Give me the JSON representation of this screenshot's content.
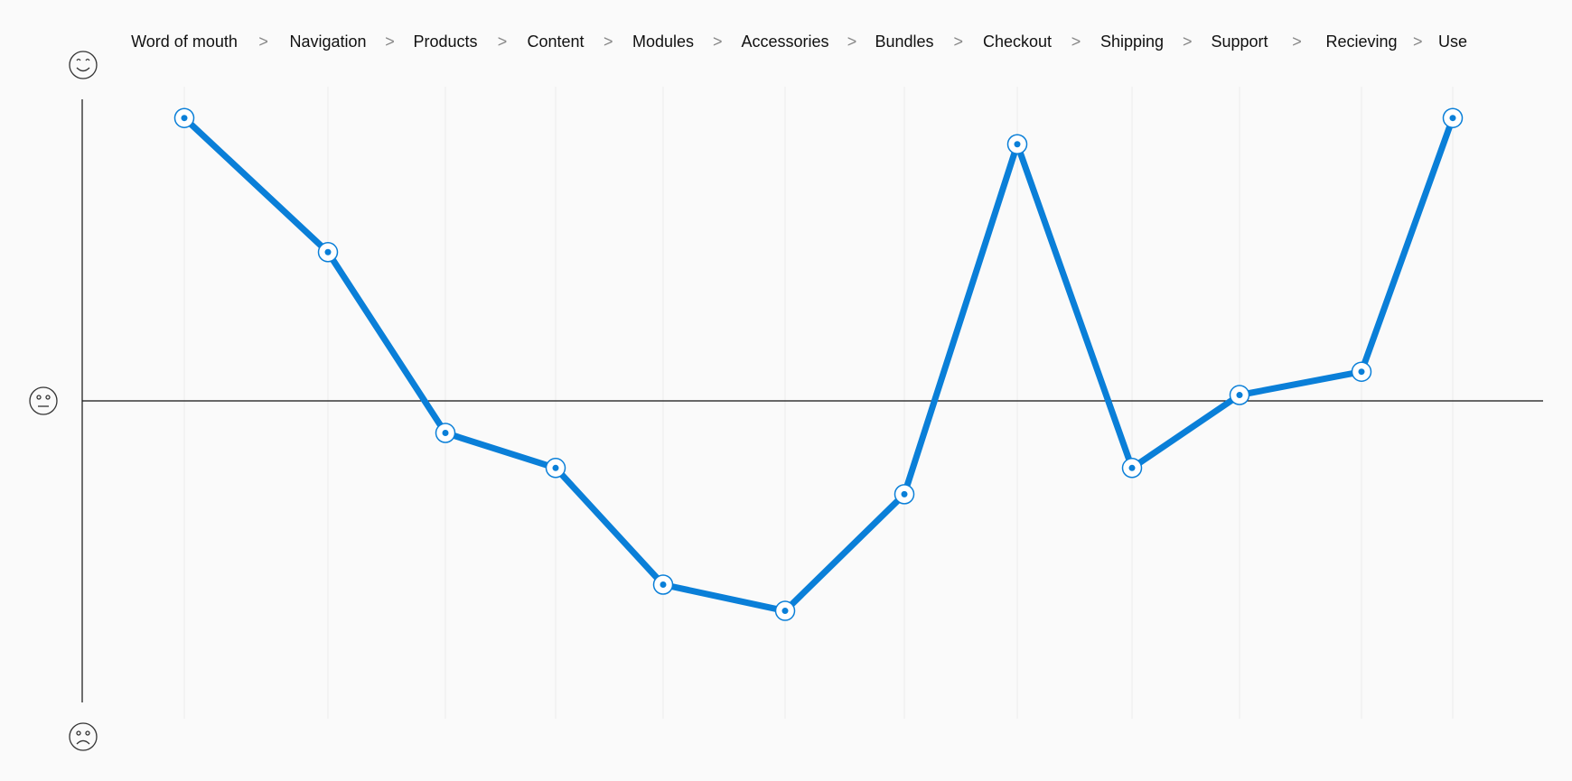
{
  "chart_data": {
    "type": "line",
    "categories": [
      "Word of mouth",
      "Navigation",
      "Products",
      "Content",
      "Modules",
      "Accessories",
      "Bundles",
      "Checkout",
      "Shipping",
      "Support",
      "Recieving",
      "Use"
    ],
    "separator": ">",
    "values": [
      0.97,
      0.51,
      -0.11,
      -0.23,
      -0.63,
      -0.72,
      -0.32,
      0.88,
      -0.23,
      0.02,
      0.1,
      0.97
    ],
    "ylim": [
      -1,
      1
    ],
    "axis_icons": {
      "top": "happy-face-icon",
      "middle": "neutral-face-icon",
      "bottom": "sad-face-icon"
    },
    "grid": true,
    "line_color": "#0a7fd8"
  }
}
